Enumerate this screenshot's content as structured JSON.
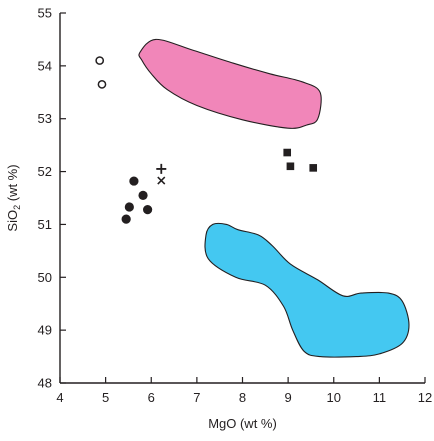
{
  "chart_data": {
    "type": "scatter",
    "xlabel": "MgO (wt %)",
    "ylabel": {
      "base": "SiO",
      "sub": "2",
      "rest": " (wt %)"
    },
    "xlim": [
      4,
      12
    ],
    "ylim": [
      48,
      55
    ],
    "x_ticks": [
      "4",
      "5",
      "6",
      "7",
      "8",
      "9",
      "10",
      "11",
      "12"
    ],
    "y_ticks": [
      "48",
      "49",
      "50",
      "51",
      "52",
      "53",
      "54",
      "55"
    ],
    "grid": false,
    "legend": "none",
    "fields": [
      {
        "color": "#f186b9",
        "outline": [
          [
            5.75,
            54.25
          ],
          [
            6.1,
            54.5
          ],
          [
            6.9,
            54.3
          ],
          [
            7.8,
            54.05
          ],
          [
            8.6,
            53.85
          ],
          [
            9.3,
            53.7
          ],
          [
            9.7,
            53.5
          ],
          [
            9.65,
            53.0
          ],
          [
            9.4,
            52.88
          ],
          [
            9.0,
            52.82
          ],
          [
            8.0,
            52.98
          ],
          [
            7.0,
            53.25
          ],
          [
            6.35,
            53.55
          ],
          [
            6.0,
            53.85
          ],
          [
            5.8,
            54.1
          ]
        ]
      },
      {
        "color": "#44c8f1",
        "outline": [
          [
            7.35,
            51.0
          ],
          [
            7.65,
            51.0
          ],
          [
            7.9,
            50.9
          ],
          [
            8.35,
            50.8
          ],
          [
            8.65,
            50.6
          ],
          [
            9.05,
            50.25
          ],
          [
            9.65,
            49.95
          ],
          [
            10.2,
            49.65
          ],
          [
            10.6,
            49.7
          ],
          [
            11.2,
            49.7
          ],
          [
            11.5,
            49.55
          ],
          [
            11.65,
            49.1
          ],
          [
            11.5,
            48.75
          ],
          [
            11.0,
            48.55
          ],
          [
            10.5,
            48.5
          ],
          [
            9.7,
            48.5
          ],
          [
            9.35,
            48.6
          ],
          [
            9.1,
            49.0
          ],
          [
            8.9,
            49.45
          ],
          [
            8.5,
            49.85
          ],
          [
            7.85,
            50.0
          ],
          [
            7.25,
            50.35
          ],
          [
            7.2,
            50.8
          ]
        ]
      }
    ],
    "series": [
      {
        "marker": "open-circle",
        "points": [
          [
            4.87,
            54.1
          ],
          [
            4.92,
            53.65
          ]
        ]
      },
      {
        "marker": "filled-circle",
        "points": [
          [
            5.62,
            51.82
          ],
          [
            5.82,
            51.55
          ],
          [
            5.92,
            51.28
          ],
          [
            5.52,
            51.33
          ],
          [
            5.45,
            51.1
          ]
        ]
      },
      {
        "marker": "plus",
        "points": [
          [
            6.22,
            52.05
          ]
        ]
      },
      {
        "marker": "cross",
        "points": [
          [
            6.22,
            51.83
          ]
        ]
      },
      {
        "marker": "filled-square",
        "points": [
          [
            8.98,
            52.36
          ],
          [
            9.05,
            52.1
          ],
          [
            9.55,
            52.07
          ]
        ]
      }
    ],
    "colors": {
      "axis": "#231f20",
      "pink_field": "#f186b9",
      "blue_field": "#44c8f1"
    }
  }
}
